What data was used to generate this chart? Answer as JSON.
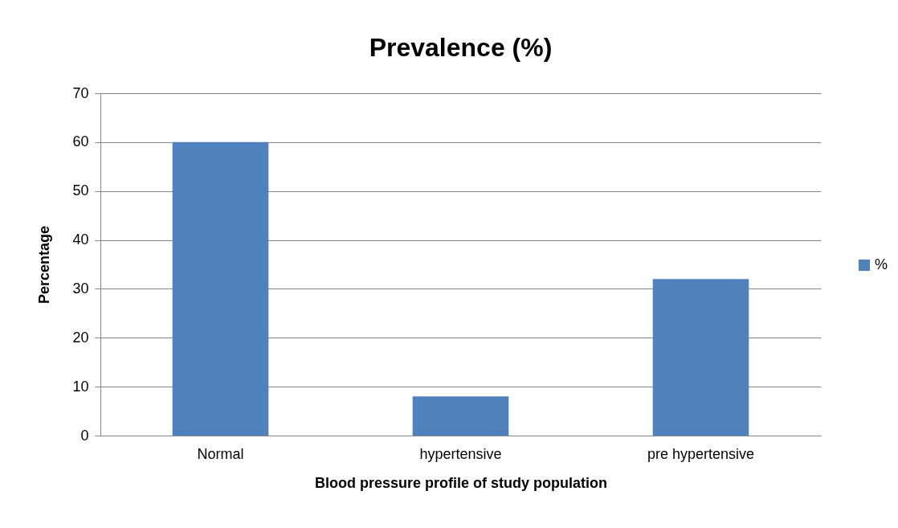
{
  "chart_data": {
    "type": "bar",
    "title": "Prevalence (%)",
    "xlabel": "Blood pressure profile of study population",
    "ylabel": "Percentage",
    "categories": [
      "Normal",
      "hypertensive",
      "pre hypertensive"
    ],
    "series": [
      {
        "name": "%",
        "color": "#4f81bd",
        "values": [
          60,
          8,
          32
        ]
      }
    ],
    "ylim": [
      0,
      70
    ],
    "yticks": [
      0,
      10,
      20,
      30,
      40,
      50,
      60,
      70
    ],
    "grid": "y",
    "legend": "right"
  }
}
